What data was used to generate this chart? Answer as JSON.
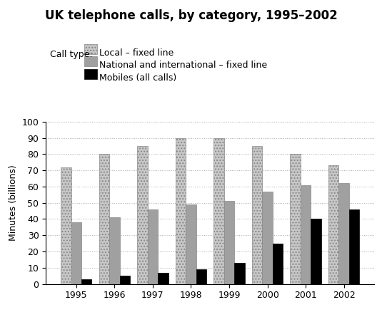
{
  "title": "UK telephone calls, by category, 1995–2002",
  "ylabel": "Minutes (billions)",
  "years": [
    1995,
    1996,
    1997,
    1998,
    1999,
    2000,
    2001,
    2002
  ],
  "local_fixed": [
    72,
    80,
    85,
    90,
    90,
    85,
    80,
    73
  ],
  "national_fixed": [
    38,
    41,
    46,
    49,
    51,
    57,
    61,
    62
  ],
  "mobiles": [
    3,
    5,
    7,
    9,
    13,
    25,
    40,
    46
  ],
  "ylim": [
    0,
    100
  ],
  "yticks": [
    0,
    10,
    20,
    30,
    40,
    50,
    60,
    70,
    80,
    90,
    100
  ],
  "legend_labels": [
    "Local – fixed line",
    "National and international – fixed line",
    "Mobiles (all calls)"
  ],
  "legend_title": "Call type:",
  "color_local": "#c8c8c8",
  "color_national": "#a0a0a0",
  "color_mobiles": "#000000",
  "bar_width": 0.27,
  "title_fontsize": 12,
  "label_fontsize": 9,
  "tick_fontsize": 9,
  "legend_fontsize": 9
}
